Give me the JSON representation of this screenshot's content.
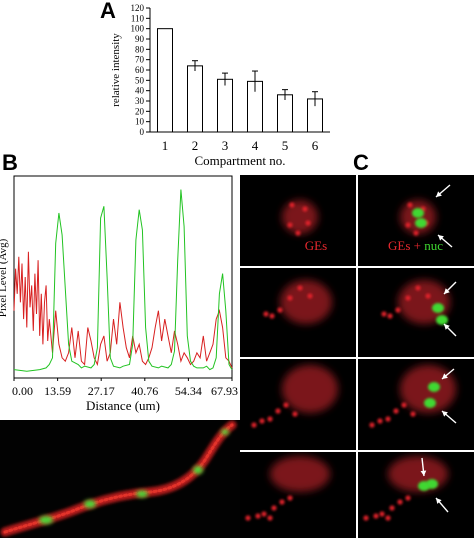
{
  "panels": {
    "a": "A",
    "b": "B",
    "c": "C"
  },
  "panel_c": {
    "label_ges": "GEs",
    "label_combo_prefix": "GEs + ",
    "label_combo_suffix": "nuc",
    "colors": {
      "red": "#e0202a",
      "green": "#3fd830"
    }
  },
  "chart_data": [
    {
      "type": "bar",
      "categories": [
        "1",
        "2",
        "3",
        "4",
        "5",
        "6"
      ],
      "values": [
        100,
        64,
        51,
        49,
        36,
        32
      ],
      "errors": [
        0,
        5,
        6,
        10,
        5,
        7
      ],
      "xlabel": "Compartment no.",
      "ylabel": "relative intensity",
      "ylim": [
        0,
        120
      ],
      "yticks": [
        0,
        10,
        20,
        30,
        40,
        50,
        60,
        70,
        80,
        90,
        100,
        110,
        120
      ]
    },
    {
      "type": "line",
      "xlabel": "Distance (um)",
      "ylabel": "Pixel Level (Avg)",
      "xlim": [
        0,
        67.93
      ],
      "xticks": [
        "0.00",
        "13.59",
        "27.17",
        "40.76",
        "54.34",
        "67.93"
      ],
      "series": [
        {
          "color": "#22c322",
          "x": [
            0,
            4,
            8,
            10,
            11,
            12,
            13,
            14,
            15,
            17,
            18,
            20,
            21,
            22,
            24,
            25,
            26,
            27,
            28,
            29,
            30,
            31,
            33,
            34,
            36,
            37,
            38,
            39,
            40,
            41,
            42,
            43,
            45,
            46,
            48,
            49,
            50,
            51,
            52,
            53,
            54,
            55,
            56,
            57,
            59,
            60,
            61,
            62,
            63,
            64,
            65,
            66,
            67,
            67.93
          ],
          "values": [
            5,
            4,
            5,
            6,
            8,
            12,
            80,
            98,
            85,
            20,
            10,
            8,
            6,
            7,
            6,
            8,
            18,
            95,
            102,
            60,
            12,
            7,
            6,
            7,
            8,
            20,
            82,
            100,
            88,
            30,
            10,
            7,
            6,
            7,
            6,
            8,
            16,
            70,
            112,
            90,
            25,
            10,
            7,
            6,
            6,
            7,
            5,
            6,
            12,
            50,
            62,
            40,
            8,
            5
          ]
        },
        {
          "color": "#d82020",
          "x": [
            0,
            0.5,
            1,
            1.5,
            2,
            2.5,
            3,
            3.5,
            4,
            4.5,
            5,
            5.5,
            6,
            6.5,
            7,
            7.5,
            8,
            8.5,
            9,
            9.5,
            10,
            10.5,
            11,
            12,
            13,
            14,
            15,
            16,
            17,
            18,
            19,
            20,
            21,
            22,
            23,
            24,
            25,
            26,
            27,
            28,
            29,
            30,
            31,
            32,
            33,
            34,
            35,
            36,
            37,
            38,
            39,
            40,
            41,
            42,
            43,
            44,
            45,
            46,
            47,
            48,
            49,
            50,
            51,
            52,
            53,
            54,
            55,
            56,
            57,
            58,
            59,
            60,
            61,
            62,
            63,
            64,
            65,
            66,
            67,
            67.93
          ],
          "values": [
            40,
            65,
            50,
            72,
            45,
            68,
            35,
            60,
            30,
            75,
            42,
            55,
            28,
            62,
            38,
            70,
            25,
            50,
            20,
            45,
            55,
            22,
            35,
            15,
            40,
            20,
            12,
            10,
            15,
            30,
            12,
            28,
            10,
            8,
            30,
            22,
            12,
            8,
            20,
            25,
            10,
            15,
            35,
            20,
            45,
            30,
            18,
            12,
            25,
            15,
            20,
            10,
            8,
            12,
            18,
            30,
            40,
            22,
            35,
            25,
            15,
            28,
            20,
            10,
            15,
            12,
            8,
            10,
            15,
            12,
            25,
            10,
            15,
            20,
            35,
            40,
            30,
            12,
            10,
            6
          ]
        }
      ]
    }
  ]
}
